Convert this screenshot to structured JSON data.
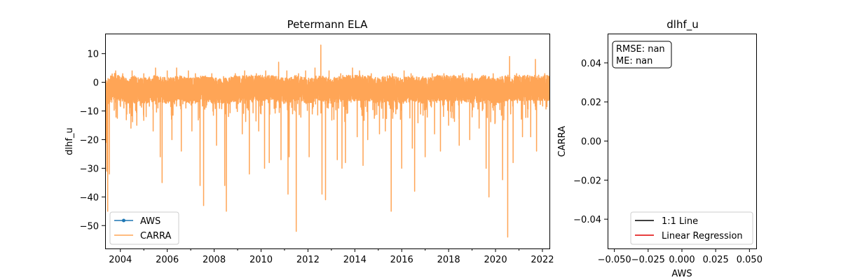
{
  "chart_data": [
    {
      "type": "line",
      "title": "Petermann ELA",
      "xlabel": "",
      "ylabel": "dlhf_u",
      "xlim": [
        2003.35,
        2022.3
      ],
      "ylim": [
        -58,
        17
      ],
      "x_ticks": [
        "2004",
        "2006",
        "2008",
        "2010",
        "2012",
        "2014",
        "2016",
        "2018",
        "2020",
        "2022"
      ],
      "y_ticks": [
        "10",
        "0",
        "−10",
        "−20",
        "−30",
        "−40",
        "−50"
      ],
      "legend": {
        "position": "lower-left",
        "entries": [
          "AWS",
          "CARRA"
        ]
      },
      "grid": false,
      "series": [
        {
          "name": "AWS",
          "color": "#1f77b4",
          "marker": "circle",
          "values": []
        },
        {
          "name": "CARRA",
          "color": "#ffa556",
          "baseline": [
            [
              2003.35,
              -4
            ],
            [
              2003.5,
              -3
            ],
            [
              2003.7,
              -1
            ],
            [
              2004.0,
              -2
            ],
            [
              2004.3,
              -3
            ],
            [
              2004.6,
              -2
            ],
            [
              2005.0,
              -3
            ],
            [
              2005.5,
              -2
            ],
            [
              2006.0,
              -3
            ],
            [
              2006.5,
              -2
            ],
            [
              2007.0,
              -3
            ],
            [
              2007.5,
              -2
            ],
            [
              2008.0,
              -3
            ],
            [
              2008.5,
              -3
            ],
            [
              2009.0,
              -2
            ],
            [
              2009.5,
              -2
            ],
            [
              2010.0,
              -2
            ],
            [
              2010.5,
              -2
            ],
            [
              2011.0,
              -3
            ],
            [
              2011.5,
              -2
            ],
            [
              2012.0,
              -3
            ],
            [
              2012.5,
              -2
            ],
            [
              2013.0,
              -3
            ],
            [
              2013.5,
              -2
            ],
            [
              2014.0,
              -2
            ],
            [
              2014.5,
              -2
            ],
            [
              2015.0,
              -3
            ],
            [
              2015.5,
              -2
            ],
            [
              2016.0,
              -3
            ],
            [
              2016.5,
              -2
            ],
            [
              2017.0,
              -3
            ],
            [
              2017.5,
              -2
            ],
            [
              2018.0,
              -2
            ],
            [
              2018.5,
              -2
            ],
            [
              2019.0,
              -3
            ],
            [
              2019.5,
              -2
            ],
            [
              2020.0,
              -3
            ],
            [
              2020.5,
              -2
            ],
            [
              2021.0,
              -2
            ],
            [
              2021.5,
              -2
            ],
            [
              2022.0,
              -2
            ],
            [
              2022.3,
              -2
            ]
          ],
          "extremes": [
            [
              2003.38,
              -21
            ],
            [
              2003.42,
              -31
            ],
            [
              2003.46,
              -45
            ],
            [
              2003.53,
              -32
            ],
            [
              2003.8,
              -14
            ],
            [
              2004.15,
              -9
            ],
            [
              2004.45,
              -16
            ],
            [
              2004.7,
              -15
            ],
            [
              2005.1,
              -12
            ],
            [
              2005.4,
              -17
            ],
            [
              2005.7,
              -26
            ],
            [
              2005.78,
              -35
            ],
            [
              2006.2,
              -20
            ],
            [
              2006.6,
              -24
            ],
            [
              2007.05,
              -17
            ],
            [
              2007.4,
              -36
            ],
            [
              2007.55,
              -43
            ],
            [
              2008.1,
              -22
            ],
            [
              2008.45,
              -36
            ],
            [
              2008.52,
              -45
            ],
            [
              2008.9,
              -32
            ],
            [
              2009.2,
              -18
            ],
            [
              2009.5,
              -32
            ],
            [
              2009.9,
              -17
            ],
            [
              2010.15,
              -30
            ],
            [
              2010.35,
              -28
            ],
            [
              2010.85,
              -27
            ],
            [
              2011.2,
              -26
            ],
            [
              2011.5,
              -52
            ],
            [
              2011.15,
              -39
            ],
            [
              2012.05,
              -26
            ],
            [
              2012.6,
              -39
            ],
            [
              2012.75,
              -41
            ],
            [
              2013.25,
              -27
            ],
            [
              2013.45,
              -30
            ],
            [
              2013.6,
              -28
            ],
            [
              2014.1,
              -19
            ],
            [
              2014.35,
              -29
            ],
            [
              2014.55,
              -20
            ],
            [
              2015.05,
              -18
            ],
            [
              2015.3,
              -17
            ],
            [
              2015.55,
              -45
            ],
            [
              2016.0,
              -30
            ],
            [
              2016.45,
              -23
            ],
            [
              2016.55,
              -38
            ],
            [
              2017.0,
              -26
            ],
            [
              2017.4,
              -18
            ],
            [
              2017.65,
              -24
            ],
            [
              2018.0,
              -15
            ],
            [
              2018.45,
              -22
            ],
            [
              2018.9,
              -20
            ],
            [
              2019.3,
              -16
            ],
            [
              2019.6,
              -30
            ],
            [
              2019.72,
              -40
            ],
            [
              2020.3,
              -34
            ],
            [
              2020.52,
              -54
            ],
            [
              2020.75,
              -28
            ],
            [
              2021.15,
              -19
            ],
            [
              2021.5,
              -19
            ],
            [
              2021.75,
              -24
            ]
          ],
          "peaks": [
            [
              2003.8,
              4
            ],
            [
              2004.1,
              3
            ],
            [
              2004.5,
              4
            ],
            [
              2005.0,
              3
            ],
            [
              2005.5,
              5
            ],
            [
              2006.0,
              4
            ],
            [
              2006.4,
              5
            ],
            [
              2006.9,
              4
            ],
            [
              2007.2,
              3
            ],
            [
              2007.9,
              3
            ],
            [
              2008.4,
              2
            ],
            [
              2008.9,
              3
            ],
            [
              2009.3,
              4
            ],
            [
              2009.8,
              3
            ],
            [
              2010.2,
              4
            ],
            [
              2010.75,
              7
            ],
            [
              2011.1,
              4
            ],
            [
              2011.6,
              3
            ],
            [
              2011.9,
              4
            ],
            [
              2012.3,
              5
            ],
            [
              2012.55,
              13
            ],
            [
              2012.9,
              4
            ],
            [
              2013.4,
              3
            ],
            [
              2013.9,
              5
            ],
            [
              2014.2,
              4
            ],
            [
              2014.7,
              3
            ],
            [
              2015.2,
              2
            ],
            [
              2015.6,
              3
            ],
            [
              2016.1,
              4
            ],
            [
              2016.4,
              3
            ],
            [
              2016.9,
              2
            ],
            [
              2017.3,
              3
            ],
            [
              2017.8,
              3
            ],
            [
              2018.2,
              2
            ],
            [
              2018.6,
              3
            ],
            [
              2019.0,
              3
            ],
            [
              2019.4,
              2
            ],
            [
              2019.9,
              3
            ],
            [
              2020.4,
              2
            ],
            [
              2020.6,
              9
            ],
            [
              2020.9,
              3
            ],
            [
              2021.3,
              2
            ],
            [
              2021.7,
              8
            ],
            [
              2022.1,
              3
            ]
          ]
        }
      ]
    },
    {
      "type": "scatter",
      "title": "dlhf_u",
      "xlabel": "AWS",
      "ylabel": "CARRA",
      "xlim": [
        -0.055,
        0.055
      ],
      "ylim": [
        -0.055,
        0.055
      ],
      "x_ticks": [
        "−0.050",
        "−0.025",
        "0.000",
        "0.025",
        "0.050"
      ],
      "y_ticks": [
        "0.04",
        "0.02",
        "0.00",
        "−0.02",
        "−0.04"
      ],
      "stats_text": [
        "RMSE: nan",
        "ME: nan"
      ],
      "legend": {
        "position": "lower-right",
        "entries": [
          "1:1 Line",
          "Linear Regression"
        ]
      },
      "grid": false,
      "series": [
        {
          "name": "1:1 Line",
          "color": "#000000",
          "values": []
        },
        {
          "name": "Linear Regression",
          "color": "#e00000",
          "values": []
        }
      ]
    }
  ]
}
